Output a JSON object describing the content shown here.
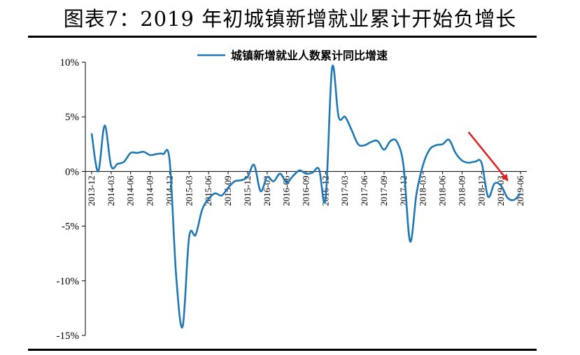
{
  "title": "图表7：2019 年初城镇新增就业累计开始负增长",
  "chart_data": {
    "type": "line",
    "xlabel": "",
    "ylabel": "",
    "ylim": [
      -15,
      10
    ],
    "y_ticks": [
      "10%",
      "5%",
      "0%",
      "-5%",
      "-10%",
      "-15%"
    ],
    "y_tick_values": [
      10,
      5,
      0,
      -5,
      -10,
      -15
    ],
    "x_tick_labels": [
      "2013-12",
      "2014-03",
      "2014-06",
      "2014-09",
      "2014-12",
      "2015-03",
      "2015-06",
      "2015-09",
      "2015-12",
      "2016-03",
      "2016-06",
      "2016-09",
      "2016-12",
      "2017-03",
      "2017-06",
      "2017-09",
      "2017-12",
      "2018-03",
      "2018-06",
      "2018-09",
      "2018-12",
      "2019-03",
      "2019-06"
    ],
    "grid": false,
    "legend_position": "top",
    "series": [
      {
        "name": "城镇新增就业人数累计同比增速",
        "color": "#1f78b4",
        "x": [
          "2013-12",
          "2014-01",
          "2014-02",
          "2014-03",
          "2014-04",
          "2014-05",
          "2014-06",
          "2014-07",
          "2014-08",
          "2014-09",
          "2014-10",
          "2014-11",
          "2014-12",
          "2015-01",
          "2015-02",
          "2015-03",
          "2015-04",
          "2015-05",
          "2015-06",
          "2015-07",
          "2015-08",
          "2015-09",
          "2015-10",
          "2015-11",
          "2015-12",
          "2016-01",
          "2016-02",
          "2016-03",
          "2016-04",
          "2016-05",
          "2016-06",
          "2016-07",
          "2016-08",
          "2016-09",
          "2016-10",
          "2016-11",
          "2016-12",
          "2017-01",
          "2017-02",
          "2017-03",
          "2017-04",
          "2017-05",
          "2017-06",
          "2017-07",
          "2017-08",
          "2017-09",
          "2017-10",
          "2017-11",
          "2017-12",
          "2018-01",
          "2018-02",
          "2018-03",
          "2018-04",
          "2018-05",
          "2018-06",
          "2018-07",
          "2018-08",
          "2018-09",
          "2018-10",
          "2018-11",
          "2018-12",
          "2019-01",
          "2019-02",
          "2019-03",
          "2019-04",
          "2019-05",
          "2019-06"
        ],
        "values": [
          3.5,
          0.0,
          4.2,
          0.5,
          0.7,
          0.9,
          1.7,
          1.7,
          1.8,
          1.5,
          1.6,
          1.6,
          1.0,
          -9.5,
          -14.2,
          -6.0,
          -5.8,
          -3.5,
          -2.5,
          -2.0,
          -2.2,
          -1.5,
          -0.9,
          -0.8,
          -0.5,
          0.6,
          -1.8,
          -0.5,
          -0.9,
          -0.2,
          -1.0,
          -0.4,
          0.1,
          -0.2,
          -0.1,
          0.2,
          -2.5,
          9.5,
          5.0,
          5.0,
          3.8,
          2.5,
          2.4,
          2.7,
          2.8,
          2.0,
          2.8,
          2.7,
          0.5,
          -6.4,
          -2.0,
          0.6,
          2.0,
          2.4,
          2.5,
          2.9,
          1.7,
          1.0,
          0.8,
          0.9,
          0.8,
          -2.3,
          -1.1,
          -1.3,
          -2.4,
          -2.6,
          -2.0
        ]
      }
    ],
    "annotations": [
      {
        "type": "arrow",
        "color": "#e02020",
        "from_x": "2018-10",
        "from_y": 3.6,
        "to_x": "2019-04",
        "to_y": -0.8
      }
    ]
  }
}
